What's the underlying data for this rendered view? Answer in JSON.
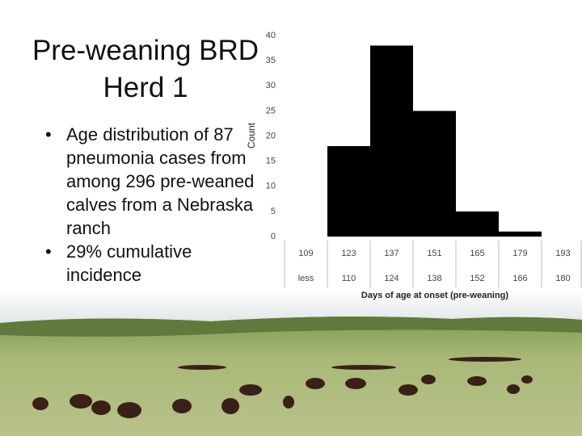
{
  "slide": {
    "title": "Pre-weaning BRD Herd 1",
    "bullets": [
      "Age distribution of 87 pneumonia cases from among 296 pre-weaned calves from a Nebraska ranch",
      "29% cumulative incidence"
    ]
  },
  "chart_data": {
    "type": "bar",
    "categories": [
      "109",
      "123",
      "137",
      "151",
      "165",
      "179",
      "193"
    ],
    "category_sublabels": [
      "less",
      "110",
      "124",
      "138",
      "152",
      "166",
      "180"
    ],
    "values": [
      0,
      18,
      38,
      25,
      5,
      1,
      0
    ],
    "color": "#000000",
    "ylabel": "Count",
    "xlabel": "Days of age at onset (pre-weaning)",
    "ylim": [
      0,
      40
    ],
    "yticks": [
      0,
      5,
      10,
      15,
      20,
      25,
      30,
      35,
      40
    ]
  }
}
